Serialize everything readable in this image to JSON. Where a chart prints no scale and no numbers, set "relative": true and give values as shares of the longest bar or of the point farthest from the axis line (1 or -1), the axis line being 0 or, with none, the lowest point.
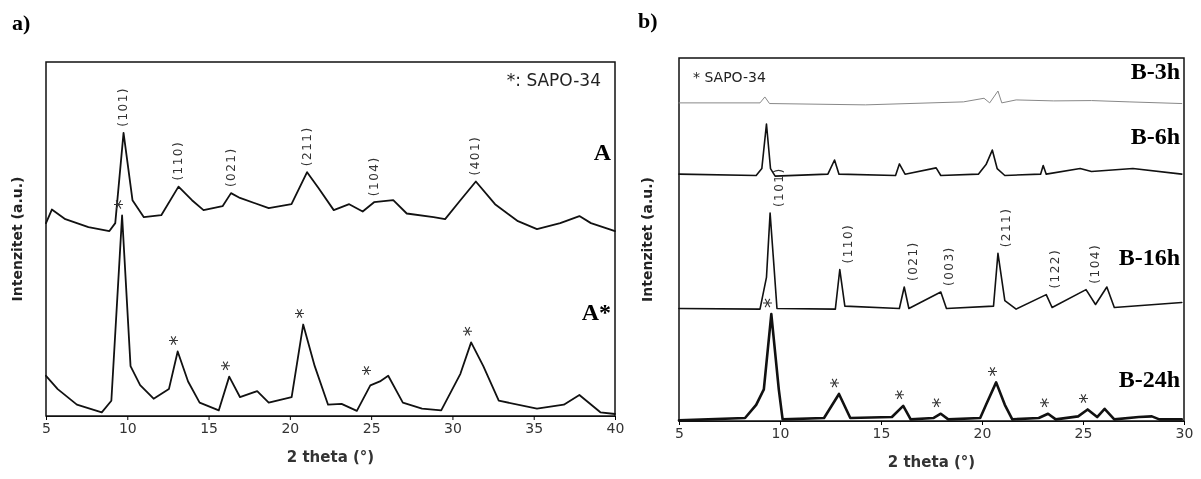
{
  "chart_data": [
    {
      "type": "line",
      "title": "a)",
      "xlabel": "2 theta (°)",
      "ylabel": "Intenzitet (a.u.)",
      "relative": true,
      "xlim": [
        5,
        40
      ],
      "xticks": [
        5,
        10,
        15,
        20,
        25,
        30,
        35,
        40
      ],
      "series": [
        {
          "name": "A",
          "color": "#111111",
          "x": [
            5.0,
            5.36,
            6.19,
            7.61,
            8.9,
            9.26,
            9.77,
            10.32,
            11.02,
            12.09,
            13.15,
            13.98,
            14.69,
            15.86,
            16.38,
            16.93,
            18.7,
            20.1,
            21.06,
            21.76,
            22.7,
            23.65,
            24.48,
            25.18,
            26.36,
            27.19,
            28.84,
            29.55,
            30.49,
            31.44,
            32.62,
            34.03,
            35.2,
            36.63,
            37.81,
            38.52,
            40.0
          ],
          "values": [
            0.681,
            0.729,
            0.695,
            0.667,
            0.653,
            0.681,
            1.0,
            0.762,
            0.702,
            0.709,
            0.81,
            0.762,
            0.727,
            0.741,
            0.787,
            0.77,
            0.734,
            0.748,
            0.861,
            0.805,
            0.727,
            0.748,
            0.722,
            0.755,
            0.762,
            0.715,
            0.702,
            0.695,
            0.762,
            0.828,
            0.748,
            0.688,
            0.66,
            0.681,
            0.706,
            0.681,
            0.653
          ]
        },
        {
          "name": "A*",
          "color": "#111111",
          "x": [
            5.0,
            5.72,
            6.9,
            8.43,
            9.02,
            9.68,
            10.2,
            10.79,
            11.62,
            12.56,
            13.1,
            13.74,
            14.45,
            15.63,
            16.27,
            16.93,
            17.99,
            18.7,
            20.11,
            20.82,
            21.53,
            22.35,
            23.18,
            24.12,
            24.95,
            25.54,
            26.05,
            26.95,
            28.13,
            29.31,
            30.49,
            31.15,
            31.9,
            32.85,
            35.2,
            36.85,
            37.81,
            39.1,
            40.0
          ],
          "values": [
            0.142,
            0.095,
            0.04,
            0.013,
            0.054,
            0.708,
            0.176,
            0.109,
            0.061,
            0.095,
            0.228,
            0.122,
            0.047,
            0.02,
            0.139,
            0.067,
            0.088,
            0.047,
            0.067,
            0.323,
            0.176,
            0.04,
            0.043,
            0.018,
            0.108,
            0.122,
            0.142,
            0.047,
            0.026,
            0.02,
            0.149,
            0.26,
            0.176,
            0.054,
            0.026,
            0.04,
            0.074,
            0.013,
            0.007
          ]
        }
      ],
      "annotations": [
        "*: SAPO-34",
        {
          "text": "(101)",
          "x": 9.77,
          "y": 1.0
        },
        {
          "text": "(110)",
          "x": 13.15,
          "y": 0.81
        },
        {
          "text": "(021)",
          "x": 16.38,
          "y": 0.787
        },
        {
          "text": "(211)",
          "x": 21.06,
          "y": 0.861
        },
        {
          "text": "(104)",
          "x": 25.18,
          "y": 0.755
        },
        {
          "text": "(401)",
          "x": 31.44,
          "y": 0.828
        },
        {
          "text": "*",
          "x": 9.68,
          "y": 0.708
        },
        {
          "text": "*",
          "x": 13.1,
          "y": 0.228
        },
        {
          "text": "*",
          "x": 16.27,
          "y": 0.139
        },
        {
          "text": "*",
          "x": 20.82,
          "y": 0.323
        },
        {
          "text": "*",
          "x": 24.95,
          "y": 0.122
        },
        {
          "text": "*",
          "x": 31.15,
          "y": 0.26
        }
      ]
    },
    {
      "type": "line",
      "title": "b)",
      "xlabel": "2 theta  (°)",
      "ylabel": "Intenzitet (a.u.)",
      "relative": true,
      "xlim": [
        5,
        30
      ],
      "xticks": [
        5,
        10,
        15,
        20,
        25,
        30
      ],
      "series": [
        {
          "name": "B-3h",
          "color": "#888888",
          "x": [
            5.0,
            9.01,
            9.25,
            9.48,
            14.23,
            19.08,
            20.1,
            20.38,
            20.79,
            20.98,
            21.69,
            23.55,
            25.42,
            27.28,
            29.89
          ],
          "values": [
            0.964,
            0.964,
            0.982,
            0.962,
            0.958,
            0.967,
            0.978,
            0.964,
            1.0,
            0.964,
            0.973,
            0.97,
            0.971,
            0.967,
            0.962
          ]
        },
        {
          "name": "B-6h",
          "color": "#111111",
          "x": [
            5.0,
            8.82,
            9.1,
            9.33,
            9.53,
            9.76,
            12.37,
            12.7,
            12.92,
            15.72,
            15.91,
            16.19,
            17.73,
            17.96,
            19.82,
            20.2,
            20.51,
            20.75,
            21.13,
            22.9,
            23.03,
            23.18,
            24.86,
            25.42,
            27.47,
            29.89
          ],
          "values": [
            0.748,
            0.744,
            0.765,
            0.9,
            0.765,
            0.742,
            0.748,
            0.791,
            0.748,
            0.744,
            0.779,
            0.748,
            0.767,
            0.744,
            0.748,
            0.777,
            0.821,
            0.765,
            0.744,
            0.748,
            0.774,
            0.748,
            0.765,
            0.756,
            0.765,
            0.748
          ]
        },
        {
          "name": "B-16h",
          "color": "#111111",
          "x": [
            5.0,
            9.01,
            9.33,
            9.51,
            9.7,
            9.85,
            12.74,
            12.96,
            13.21,
            15.91,
            16.15,
            16.38,
            17.96,
            18.24,
            20.57,
            20.79,
            21.13,
            21.69,
            23.18,
            23.47,
            25.15,
            25.62,
            26.18,
            26.55,
            29.89
          ],
          "values": [
            0.341,
            0.339,
            0.435,
            0.63,
            0.47,
            0.341,
            0.339,
            0.459,
            0.348,
            0.341,
            0.406,
            0.341,
            0.391,
            0.341,
            0.348,
            0.508,
            0.365,
            0.339,
            0.383,
            0.344,
            0.398,
            0.353,
            0.406,
            0.344,
            0.359
          ]
        },
        {
          "name": "B-24h",
          "color": "#111111",
          "x": [
            5.0,
            8.27,
            8.82,
            9.2,
            9.57,
            9.94,
            10.13,
            12.18,
            12.92,
            13.48,
            15.54,
            16.1,
            16.47,
            17.59,
            17.96,
            18.33,
            19.91,
            20.2,
            20.7,
            21.13,
            21.5,
            22.81,
            23.27,
            23.65,
            24.76,
            25.23,
            25.7,
            26.07,
            26.55,
            27.76,
            28.41,
            28.78,
            29.89
          ],
          "values": [
            0.002,
            0.009,
            0.049,
            0.096,
            0.324,
            0.096,
            0.005,
            0.009,
            0.082,
            0.009,
            0.012,
            0.046,
            0.005,
            0.009,
            0.022,
            0.005,
            0.009,
            0.049,
            0.117,
            0.049,
            0.005,
            0.009,
            0.022,
            0.005,
            0.014,
            0.035,
            0.012,
            0.037,
            0.005,
            0.012,
            0.014,
            0.005,
            0.005
          ]
        }
      ],
      "annotations": [
        "* SAPO-34",
        {
          "text": "(101)",
          "x": 9.51,
          "y": 0.63
        },
        {
          "text": "(110)",
          "x": 12.96,
          "y": 0.459
        },
        {
          "text": "(021)",
          "x": 16.15,
          "y": 0.406
        },
        {
          "text": "(003)",
          "x": 17.96,
          "y": 0.391
        },
        {
          "text": "(211)",
          "x": 20.79,
          "y": 0.508
        },
        {
          "text": "(122)",
          "x": 23.18,
          "y": 0.383
        },
        {
          "text": "(104)",
          "x": 25.15,
          "y": 0.398
        },
        {
          "text": "*",
          "x": 9.57,
          "y": 0.324
        },
        {
          "text": "*",
          "x": 12.92,
          "y": 0.082
        },
        {
          "text": "*",
          "x": 16.1,
          "y": 0.046
        },
        {
          "text": "*",
          "x": 17.96,
          "y": 0.022
        },
        {
          "text": "*",
          "x": 20.7,
          "y": 0.117
        },
        {
          "text": "*",
          "x": 23.27,
          "y": 0.022
        },
        {
          "text": "*",
          "x": 25.23,
          "y": 0.035
        }
      ]
    }
  ]
}
